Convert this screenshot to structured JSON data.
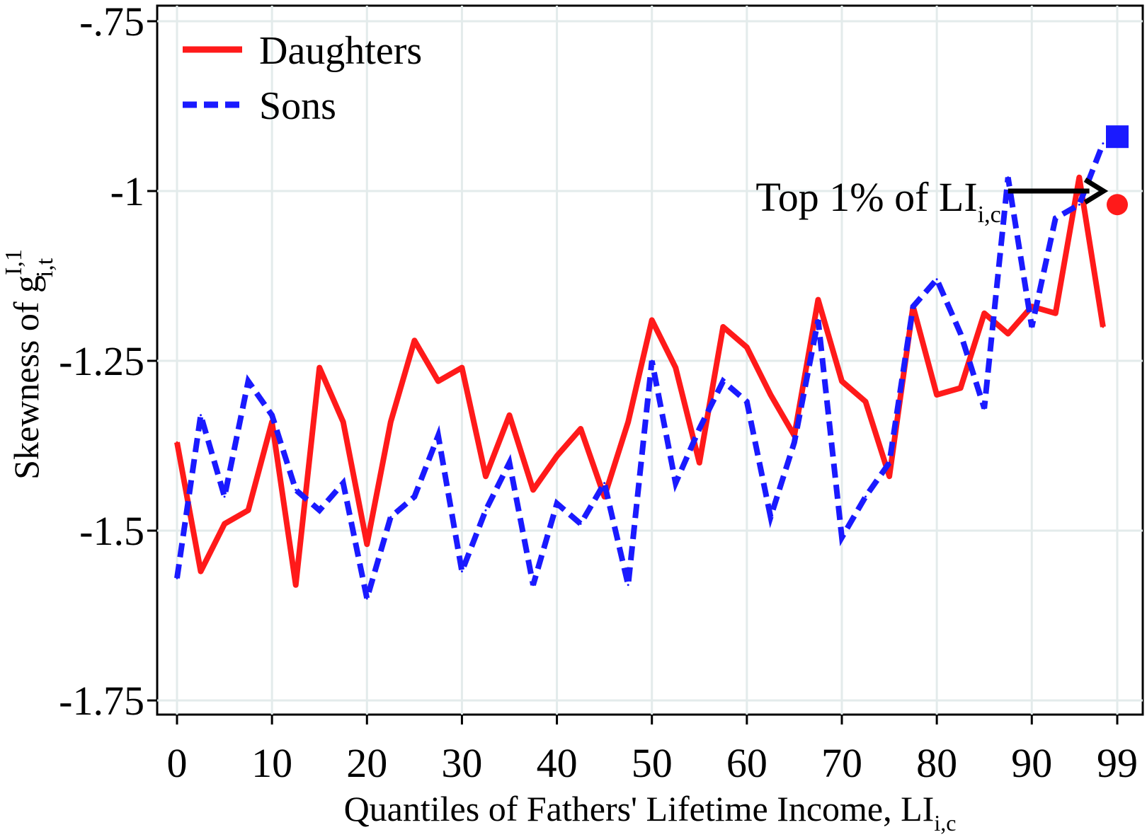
{
  "chart_data": {
    "type": "line",
    "title": "",
    "xlabel": {
      "main": "Quantiles of Fathers' Lifetime Income, LI",
      "sub": "i,c"
    },
    "ylabel": {
      "main": "Skewness of g",
      "sup": "I,1",
      "sub": "i,t"
    },
    "xlim": [
      0,
      99
    ],
    "ylim": [
      -1.75,
      -0.75
    ],
    "y_inverted": true,
    "yticks": [
      -0.75,
      -1,
      -1.25,
      -1.5,
      -1.75
    ],
    "ytick_labels": [
      "-.75",
      "-1",
      "-1.25",
      "-1.5",
      "-1.75"
    ],
    "xticks": [
      0,
      10,
      20,
      30,
      40,
      50,
      60,
      70,
      80,
      90,
      99
    ],
    "xtick_labels": [
      "0",
      "10",
      "20",
      "30",
      "40",
      "50",
      "60",
      "70",
      "80",
      "90",
      "99"
    ],
    "grid": true,
    "legend_position": "top-left",
    "series": [
      {
        "name": "Daughters",
        "color": "#ff1a1a",
        "style": "solid",
        "x": [
          0,
          2.5,
          5,
          7.5,
          10,
          12.5,
          15,
          17.5,
          20,
          22.5,
          25,
          27.5,
          30,
          32.5,
          35,
          37.5,
          40,
          42.5,
          45,
          47.5,
          50,
          52.5,
          55,
          57.5,
          60,
          62.5,
          65,
          67.5,
          70,
          72.5,
          75,
          77.5,
          80,
          82.5,
          85,
          87.5,
          90,
          92.5,
          95,
          97.5
        ],
        "values": [
          -1.37,
          -1.56,
          -1.49,
          -1.47,
          -1.34,
          -1.58,
          -1.26,
          -1.34,
          -1.52,
          -1.34,
          -1.22,
          -1.28,
          -1.26,
          -1.42,
          -1.33,
          -1.44,
          -1.39,
          -1.35,
          -1.45,
          -1.34,
          -1.19,
          -1.26,
          -1.4,
          -1.2,
          -1.23,
          -1.3,
          -1.36,
          -1.16,
          -1.28,
          -1.31,
          -1.42,
          -1.17,
          -1.3,
          -1.29,
          -1.18,
          -1.21,
          -1.17,
          -1.18,
          -0.98,
          -1.2
        ],
        "top1_value": -1.02,
        "top1_marker": "circle"
      },
      {
        "name": "Sons",
        "color": "#1a1aff",
        "style": "dashed",
        "x": [
          0,
          2.5,
          5,
          7.5,
          10,
          12.5,
          15,
          17.5,
          20,
          22.5,
          25,
          27.5,
          30,
          32.5,
          35,
          37.5,
          40,
          42.5,
          45,
          47.5,
          50,
          52.5,
          55,
          57.5,
          60,
          62.5,
          65,
          67.5,
          70,
          72.5,
          75,
          77.5,
          80,
          82.5,
          85,
          87.5,
          90,
          92.5,
          95,
          97.5
        ],
        "values": [
          -1.57,
          -1.33,
          -1.45,
          -1.28,
          -1.33,
          -1.44,
          -1.47,
          -1.43,
          -1.6,
          -1.48,
          -1.45,
          -1.36,
          -1.56,
          -1.47,
          -1.4,
          -1.58,
          -1.46,
          -1.49,
          -1.43,
          -1.58,
          -1.25,
          -1.43,
          -1.35,
          -1.28,
          -1.31,
          -1.48,
          -1.37,
          -1.19,
          -1.51,
          -1.45,
          -1.4,
          -1.17,
          -1.13,
          -1.21,
          -1.32,
          -0.98,
          -1.2,
          -1.04,
          -1.02,
          -0.93
        ],
        "top1_value": -0.92,
        "top1_marker": "square"
      }
    ],
    "annotations": [
      {
        "text": "Top 1% of LI",
        "sub": "i,c",
        "arrow_from_x": 87.5,
        "arrow_to_x": 98,
        "arrow_y": -1.0
      }
    ]
  }
}
